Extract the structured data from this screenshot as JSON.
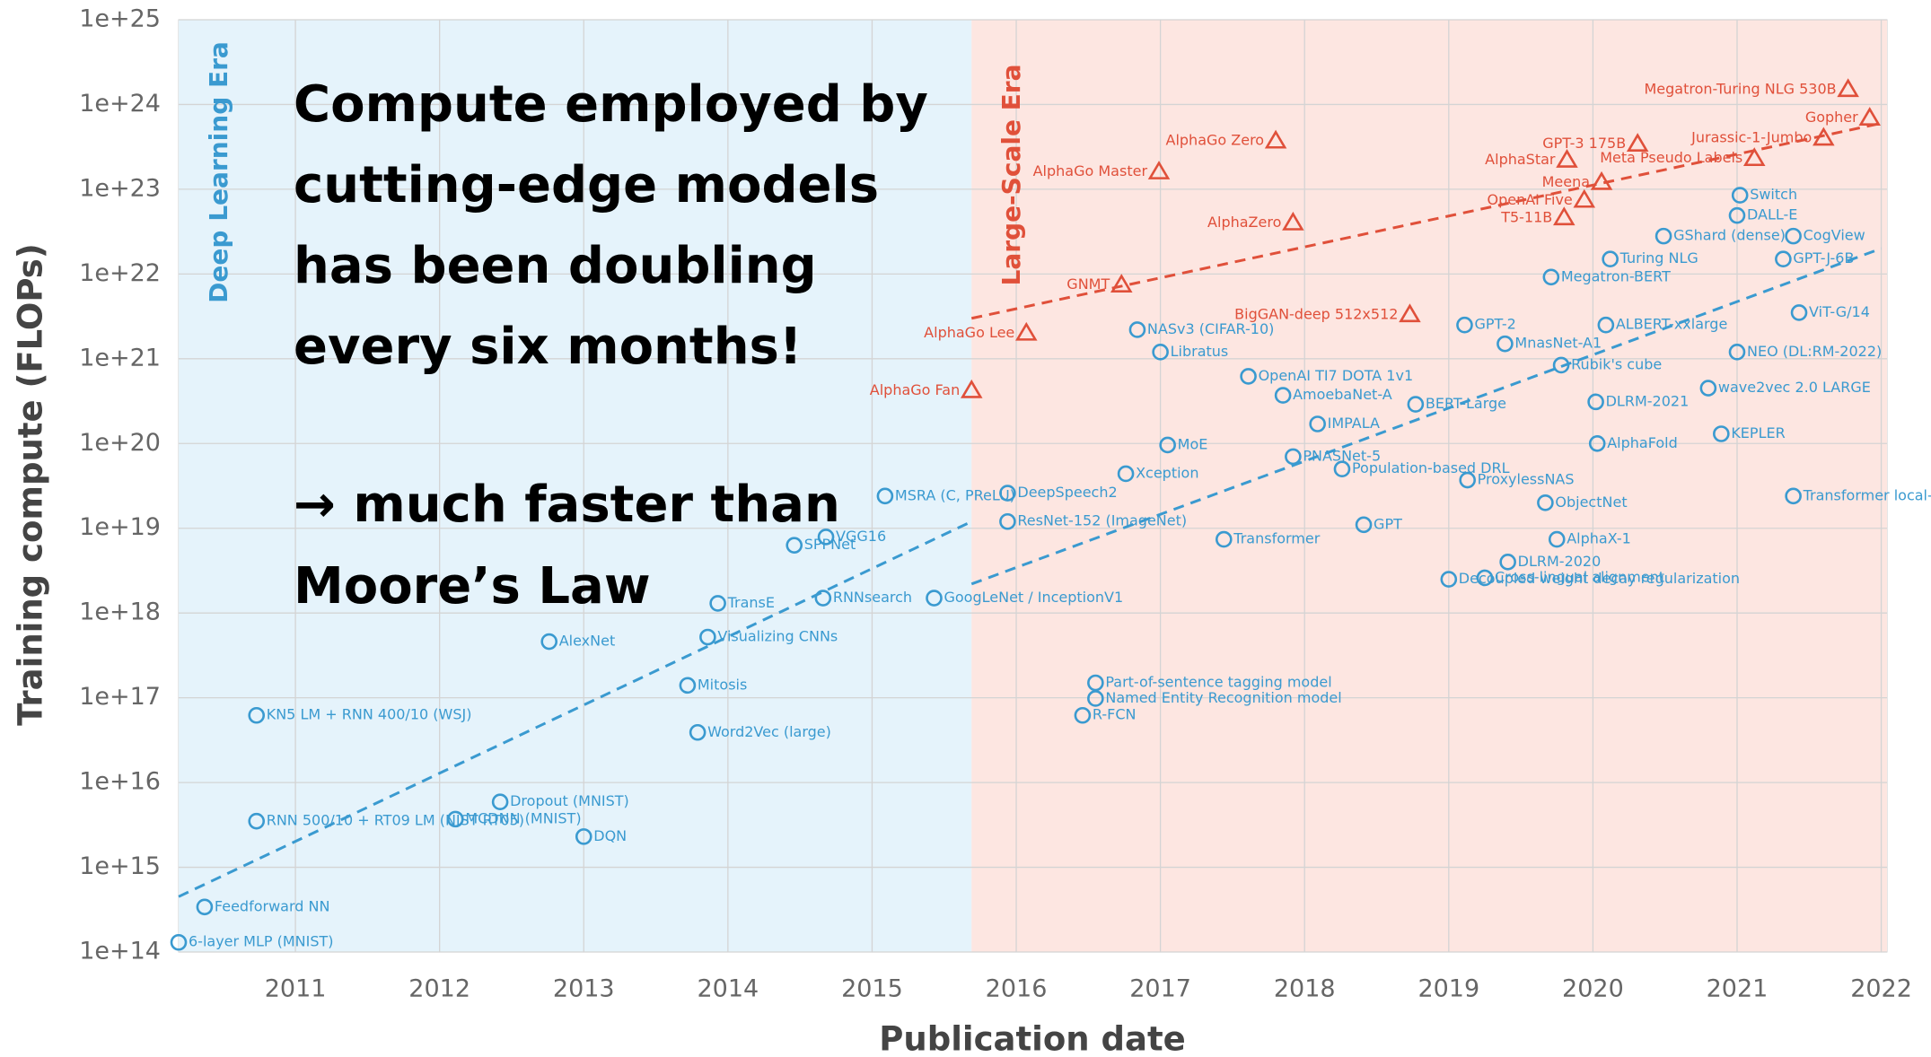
{
  "chart_data": {
    "type": "scatter",
    "ylog": true,
    "grid": true,
    "x_label": "Publication date",
    "y_label": "Training compute (FLOPs)",
    "annotation": [
      "Compute employed by",
      "cutting-edge models",
      "has been doubling",
      "every six months!",
      "→ much faster than",
      "Moore’s Law"
    ],
    "annotation_color": "#000000",
    "xlim": [
      2010.19,
      2022.04
    ],
    "xticks": [
      2011,
      2012,
      2013,
      2014,
      2015,
      2016,
      2017,
      2018,
      2019,
      2020,
      2021,
      2022
    ],
    "ylim": [
      100000000000000.0,
      1e+25
    ],
    "yticks": [
      {
        "value": 100000000000000.0,
        "label": "1e+14"
      },
      {
        "value": 1000000000000000.0,
        "label": "1e+15"
      },
      {
        "value": 1e+16,
        "label": "1e+16"
      },
      {
        "value": 1e+17,
        "label": "1e+17"
      },
      {
        "value": 1e+18,
        "label": "1e+18"
      },
      {
        "value": 1e+19,
        "label": "1e+19"
      },
      {
        "value": 1e+20,
        "label": "1e+20"
      },
      {
        "value": 1e+21,
        "label": "1e+21"
      },
      {
        "value": 1e+22,
        "label": "1e+22"
      },
      {
        "value": 1e+23,
        "label": "1e+23"
      },
      {
        "value": 1e+24,
        "label": "1e+24"
      },
      {
        "value": 1e+25,
        "label": "1e+25"
      }
    ],
    "eras": [
      {
        "label": "Deep Learning Era",
        "x": [
          2010.19,
          2015.69
        ],
        "color": "#e5f3fb",
        "text_color": "#3a9ad0"
      },
      {
        "label": "Large-Scale Era",
        "x": [
          2015.69,
          2022.04
        ],
        "color": "#fde6e1",
        "text_color": "#e0503a"
      }
    ],
    "trend_lines": [
      {
        "color": "#3a9ad0",
        "x": [
          2010.19,
          2015.69
        ],
        "values": [
          450000000000000.0,
          1.2e+19
        ]
      },
      {
        "color": "#3a9ad0",
        "x": [
          2015.69,
          2022.0
        ],
        "values": [
          2.2e+18,
          2e+22
        ]
      },
      {
        "color": "#e0503a",
        "x": [
          2015.69,
          2022.0
        ],
        "values": [
          3e+21,
          6e+23
        ]
      }
    ],
    "series": [
      {
        "color": "#3a9ad0",
        "marker": "circle",
        "labels": [
          "6-layer MLP (MNIST)",
          "Feedforward NN",
          "RNN 500/10 + RT09 LM (NIST RT05)",
          "KN5 LM + RNN 400/10 (WSJ)",
          "MCDNN (MNIST)",
          "Dropout (MNIST)",
          "DQN",
          "AlexNet",
          "Mitosis",
          "Word2Vec (large)",
          "Visualizing CNNs",
          "TransE",
          "SPPNet",
          "VGG16",
          "RNNsearch",
          "GoogLeNet / InceptionV1",
          "MSRA (C, PReLU)",
          "DeepSpeech2",
          "ResNet-152 (ImageNet)",
          "NASv3 (CIFAR-10)",
          "Libratus",
          "MoE",
          "Xception",
          "Transformer",
          "Part-of-sentence tagging model",
          "Named Entity Recognition model",
          "R-FCN",
          "OpenAI TI7 DOTA 1v1",
          "AmoebaNet-A",
          "PNASNet-5",
          "IMPALA",
          "BERT-Large",
          "Population-based DRL",
          "GPT",
          "Decoupled weight decay regularization",
          "Cross-lingual alignment",
          "ProxylessNAS",
          "ObjectNet",
          "AlphaX-1",
          "DLRM-2020",
          "MnasNet-A1",
          "Rubik's cube",
          "GPT-2",
          "ALBERT-xxlarge",
          "DLRM-2021",
          "wave2vec 2.0 LARGE",
          "AlphaFold",
          "KEPLER",
          "Transformer local-attention (NesT-B)",
          "NEO (DL:RM-2022)",
          "GShard (dense)",
          "GPT-J-6B",
          "CogView",
          "DALL-E",
          "Switch",
          "ViT-G/14",
          "Megatron-BERT",
          "Turing NLG"
        ],
        "x": [
          2010.19,
          2010.37,
          2010.73,
          2010.73,
          2012.11,
          2012.42,
          2013.0,
          2012.76,
          2013.72,
          2013.79,
          2013.86,
          2013.93,
          2014.46,
          2014.68,
          2014.66,
          2015.43,
          2015.09,
          2015.94,
          2015.94,
          2016.84,
          2017.0,
          2017.05,
          2016.76,
          2017.44,
          2016.55,
          2016.55,
          2016.46,
          2017.61,
          2017.85,
          2017.92,
          2018.09,
          2018.77,
          2018.26,
          2018.41,
          2019.0,
          2019.25,
          2019.13,
          2019.67,
          2019.75,
          2019.41,
          2019.39,
          2019.78,
          2019.11,
          2020.09,
          2020.02,
          2020.8,
          2020.03,
          2020.89,
          2021.39,
          2021.0,
          2020.49,
          2021.32,
          2021.39,
          2021.0,
          2021.02,
          2021.43,
          2019.71,
          2020.12
        ],
        "values": [
          130000000000000.0,
          340000000000000.0,
          3500000000000000.0,
          6.2e+16,
          3700000000000000.0,
          5900000000000000.0,
          2300000000000000.0,
          4.6e+17,
          1.4e+17,
          3.9e+16,
          5.2e+17,
          1.3e+18,
          6.3e+18,
          7.9e+18,
          1.5e+18,
          1.5e+18,
          2.4e+19,
          2.6e+19,
          1.2e+19,
          2.2e+21,
          1.2e+21,
          9.6e+19,
          4.4e+19,
          7.4e+18,
          1.5e+17,
          9.8e+16,
          6.2e+16,
          6.2e+20,
          3.7e+20,
          7e+19,
          1.7e+20,
          2.9e+20,
          5e+19,
          1.1e+19,
          2.5e+18,
          2.6e+18,
          3.7e+19,
          2e+19,
          7.4e+18,
          4e+18,
          1.5e+21,
          8.4e+20,
          2.5e+21,
          2.5e+21,
          3.1e+20,
          4.5e+20,
          1e+20,
          1.3e+20,
          2.4e+19,
          1.2e+21,
          2.8e+22,
          1.5e+22,
          2.8e+22,
          4.9e+22,
          8.5e+22,
          3.5e+21,
          9.2e+21,
          1.5e+22
        ]
      },
      {
        "color": "#e0503a",
        "marker": "triangle",
        "labels": [
          "AlphaGo Fan",
          "AlphaGo Lee",
          "GNMT",
          "AlphaGo Master",
          "AlphaGo Zero",
          "AlphaZero",
          "BigGAN-deep 512x512",
          "GPT-3 175B",
          "AlphaStar",
          "Meena",
          "OpenAI Five",
          "T5-11B",
          "Meta Pseudo Labels",
          "Jurassic-1-Jumbo",
          "Gopher",
          "Megatron-Turing NLG 530B"
        ],
        "x": [
          2015.69,
          2016.07,
          2016.73,
          2016.99,
          2017.8,
          2017.92,
          2018.73,
          2020.31,
          2019.82,
          2020.06,
          2019.94,
          2019.8,
          2021.12,
          2021.6,
          2021.92,
          2021.77
        ],
        "values": [
          4.2e+20,
          2e+21,
          7.4e+21,
          1.6e+23,
          3.7e+23,
          4e+22,
          3.3e+21,
          3.4e+23,
          2.2e+23,
          1.2e+23,
          7.4e+22,
          4.6e+22,
          2.3e+23,
          4e+23,
          6.9e+23,
          1.5e+24
        ]
      }
    ]
  }
}
